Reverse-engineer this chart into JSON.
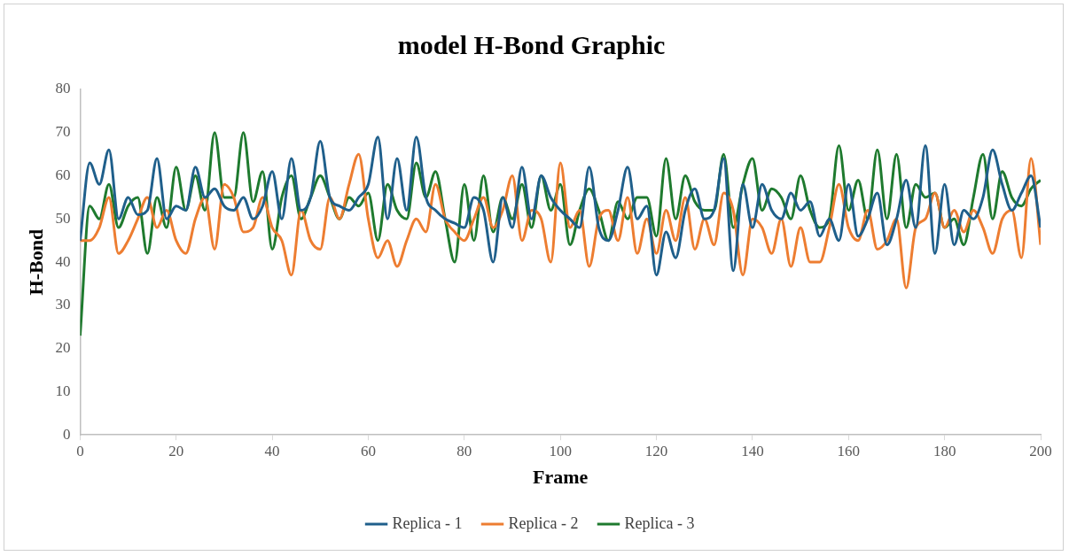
{
  "chart_data": {
    "type": "line",
    "title": "model H-Bond Graphic",
    "xlabel": "Frame",
    "ylabel": "H-Bond",
    "x": [
      0,
      2,
      4,
      6,
      8,
      10,
      12,
      14,
      16,
      18,
      20,
      22,
      24,
      26,
      28,
      30,
      32,
      34,
      36,
      38,
      40,
      42,
      44,
      46,
      48,
      50,
      52,
      54,
      56,
      58,
      60,
      62,
      64,
      66,
      68,
      70,
      72,
      74,
      76,
      78,
      80,
      82,
      84,
      86,
      88,
      90,
      92,
      94,
      96,
      98,
      100,
      102,
      104,
      106,
      108,
      110,
      112,
      114,
      116,
      118,
      120,
      122,
      124,
      126,
      128,
      130,
      132,
      134,
      136,
      138,
      140,
      142,
      144,
      146,
      148,
      150,
      152,
      154,
      156,
      158,
      160,
      162,
      164,
      166,
      168,
      170,
      172,
      174,
      176,
      178,
      180,
      182,
      184,
      186,
      188,
      190,
      192,
      194,
      196,
      198,
      200
    ],
    "series": [
      {
        "name": "Replica - 1",
        "color": "#1f5f8b",
        "values": [
          45,
          63,
          58,
          66,
          50,
          55,
          51,
          52,
          64,
          50,
          53,
          52,
          62,
          55,
          57,
          53,
          52,
          55,
          50,
          53,
          61,
          50,
          64,
          52,
          55,
          68,
          55,
          53,
          52,
          55,
          58,
          69,
          50,
          64,
          52,
          69,
          55,
          52,
          50,
          49,
          48,
          55,
          52,
          40,
          55,
          48,
          62,
          50,
          60,
          55,
          52,
          50,
          48,
          62,
          48,
          45,
          52,
          62,
          50,
          53,
          37,
          47,
          41,
          52,
          57,
          50,
          52,
          64,
          38,
          58,
          48,
          58,
          52,
          50,
          56,
          52,
          54,
          46,
          50,
          45,
          58,
          46,
          50,
          56,
          44,
          50,
          59,
          48,
          67,
          42,
          58,
          44,
          52,
          50,
          55,
          66,
          58,
          52,
          56,
          60,
          48
        ]
      },
      {
        "name": "Replica - 2",
        "color": "#ed7d31",
        "values": [
          45,
          45,
          48,
          55,
          42,
          45,
          50,
          55,
          48,
          52,
          45,
          42,
          50,
          55,
          43,
          58,
          55,
          47,
          48,
          55,
          48,
          45,
          37,
          52,
          45,
          43,
          55,
          50,
          58,
          65,
          50,
          41,
          45,
          39,
          45,
          50,
          47,
          58,
          50,
          47,
          45,
          50,
          55,
          48,
          52,
          60,
          45,
          52,
          50,
          40,
          63,
          48,
          52,
          39,
          50,
          52,
          45,
          55,
          42,
          50,
          42,
          52,
          45,
          55,
          43,
          50,
          44,
          56,
          52,
          37,
          50,
          48,
          42,
          50,
          39,
          48,
          40,
          40,
          48,
          58,
          48,
          45,
          52,
          43,
          45,
          50,
          34,
          48,
          50,
          56,
          48,
          52,
          47,
          52,
          48,
          42,
          50,
          52,
          41,
          64,
          44
        ]
      },
      {
        "name": "Replica - 3",
        "color": "#1e7a2e",
        "values": [
          23,
          53,
          50,
          58,
          48,
          53,
          55,
          42,
          55,
          48,
          62,
          52,
          60,
          52,
          70,
          55,
          55,
          70,
          54,
          61,
          43,
          55,
          60,
          50,
          55,
          60,
          55,
          50,
          55,
          53,
          56,
          45,
          58,
          52,
          50,
          63,
          55,
          61,
          50,
          40,
          58,
          45,
          60,
          47,
          55,
          50,
          58,
          48,
          60,
          52,
          58,
          44,
          52,
          57,
          52,
          45,
          54,
          50,
          55,
          55,
          46,
          64,
          50,
          60,
          54,
          52,
          52,
          65,
          48,
          58,
          64,
          52,
          57,
          55,
          50,
          60,
          52,
          48,
          50,
          67,
          52,
          59,
          50,
          66,
          50,
          65,
          48,
          58,
          55,
          56,
          48,
          50,
          44,
          55,
          65,
          50,
          61,
          55,
          53,
          57,
          59
        ]
      }
    ],
    "xlim": [
      0,
      200
    ],
    "xticks": [
      0,
      20,
      40,
      60,
      80,
      100,
      120,
      140,
      160,
      180,
      200
    ],
    "ylim": [
      0,
      80
    ],
    "yticks": [
      0,
      10,
      20,
      30,
      40,
      50,
      60,
      70,
      80
    ],
    "grid": false,
    "legend": "bottom",
    "marker": "none",
    "line_style": "solid"
  }
}
